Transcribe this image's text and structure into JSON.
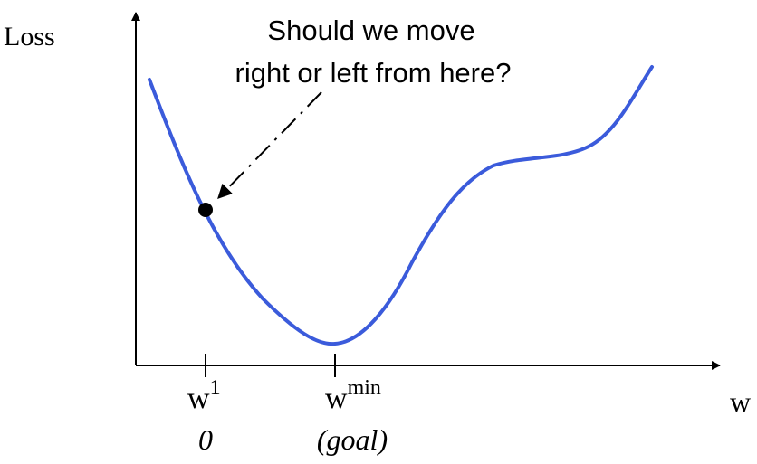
{
  "axes": {
    "y_label": "Loss",
    "x_label": "w"
  },
  "ticks": [
    {
      "base": "w",
      "superscript": "1",
      "sublabel": "0"
    },
    {
      "base": "w",
      "superscript": "min",
      "sublabel": "(goal)"
    }
  ],
  "annotation": {
    "line1": "Should we move",
    "line2": "right or left from here?"
  },
  "colors": {
    "curve": "#3b5bdb",
    "point": "#000000",
    "axis": "#000000"
  }
}
